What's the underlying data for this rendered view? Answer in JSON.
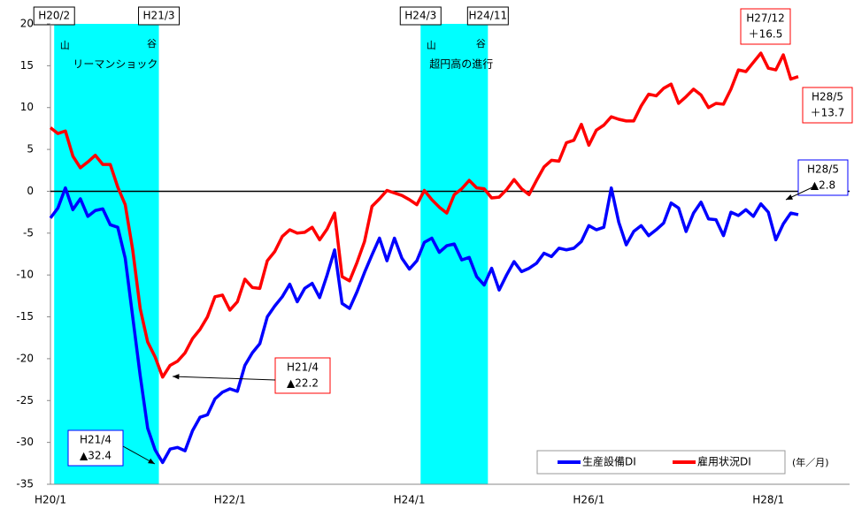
{
  "chart_data": {
    "type": "line",
    "categories": [
      "H20/1",
      null,
      null,
      null,
      null,
      null,
      null,
      null,
      null,
      null,
      null,
      null,
      null,
      null,
      null,
      null,
      null,
      null,
      null,
      null,
      null,
      null,
      null,
      null,
      "H22/1",
      null,
      null,
      null,
      null,
      null,
      null,
      null,
      null,
      null,
      null,
      null,
      null,
      null,
      null,
      null,
      null,
      null,
      null,
      null,
      null,
      null,
      null,
      null,
      "H24/1",
      null,
      null,
      null,
      null,
      null,
      null,
      null,
      null,
      null,
      null,
      null,
      null,
      null,
      null,
      null,
      null,
      null,
      null,
      null,
      null,
      null,
      null,
      null,
      "H26/1",
      null,
      null,
      null,
      null,
      null,
      null,
      null,
      null,
      null,
      null,
      null,
      null,
      null,
      null,
      null,
      null,
      null,
      null,
      null,
      null,
      null,
      null,
      null,
      "H28/1",
      null,
      null,
      null,
      null
    ],
    "series": [
      {
        "name": "生産設備DI",
        "color": "#0000ff",
        "values": [
          -3.2,
          -2,
          0.4,
          -2.2,
          -0.9,
          -3,
          -2.3,
          -2.1,
          -4,
          -4.3,
          -8,
          -15,
          -22,
          -28.3,
          -30.9,
          -32.4,
          -30.8,
          -30.6,
          -31,
          -28.6,
          -27,
          -26.7,
          -24.8,
          -24,
          -23.6,
          -23.9,
          -20.8,
          -19.3,
          -18.2,
          -15,
          -13.7,
          -12.6,
          -11.1,
          -13.2,
          -11.6,
          -11,
          -12.7,
          -10,
          -7,
          -13.4,
          -14,
          -12,
          -9.7,
          -7.6,
          -5.6,
          -8.3,
          -5.6,
          -8,
          -9.3,
          -8.3,
          -6.1,
          -5.6,
          -7.3,
          -6.5,
          -6.3,
          -8.2,
          -7.9,
          -10.2,
          -11.2,
          -9.2,
          -11.8,
          -10,
          -8.4,
          -9.6,
          -9.2,
          -8.6,
          -7.4,
          -7.8,
          -6.8,
          -7,
          -6.8,
          -6,
          -4.1,
          -4.6,
          -4.3,
          0.4,
          -3.7,
          -6.4,
          -4.8,
          -4.1,
          -5.3,
          -4.6,
          -3.8,
          -1.4,
          -2,
          -4.8,
          -2.6,
          -1.3,
          -3.3,
          -3.4,
          -5.3,
          -2.5,
          -2.9,
          -2.2,
          -3,
          -1.5,
          -2.5,
          -5.8,
          -3.9,
          -2.6,
          -2.8
        ]
      },
      {
        "name": "雇用状況DI",
        "color": "#ff0000",
        "values": [
          7.6,
          6.9,
          7.2,
          4.2,
          2.8,
          3.5,
          4.3,
          3.2,
          3.2,
          0.5,
          -1.6,
          -7,
          -14,
          -18,
          -19.8,
          -22.2,
          -20.8,
          -20.3,
          -19.3,
          -17.6,
          -16.5,
          -15,
          -12.6,
          -12.4,
          -14.2,
          -13.2,
          -10.5,
          -11.5,
          -11.6,
          -8.3,
          -7.2,
          -5.4,
          -4.6,
          -5,
          -4.9,
          -4.3,
          -5.8,
          -4.5,
          -2.6,
          -10.2,
          -10.7,
          -8.5,
          -6,
          -1.8,
          -0.9,
          0.1,
          -0.2,
          -0.5,
          -1,
          -1.6,
          0.1,
          -1,
          -1.9,
          -2.6,
          -0.4,
          0.3,
          1.3,
          0.4,
          0.3,
          -0.8,
          -0.7,
          0.2,
          1.4,
          0.3,
          -0.4,
          1.3,
          2.9,
          3.7,
          3.6,
          5.8,
          6.1,
          8,
          5.5,
          7.3,
          7.9,
          8.9,
          8.6,
          8.4,
          8.4,
          10.2,
          11.6,
          11.4,
          12.3,
          12.8,
          10.5,
          11.3,
          12.2,
          11.5,
          10,
          10.5,
          10.4,
          12.2,
          14.5,
          14.3,
          15.4,
          16.5,
          14.7,
          14.5,
          16.3,
          13.4,
          13.7
        ]
      }
    ],
    "ylim": [
      -35,
      20
    ],
    "yticks": [
      -35,
      -30,
      -25,
      -20,
      -15,
      -10,
      -5,
      0,
      5,
      10,
      15,
      20
    ],
    "zero_line": true,
    "legend": "lower right",
    "x_unit": "(年／月)",
    "shaded_periods": [
      {
        "start": 1,
        "end": 14,
        "start_label": "H20/2",
        "end_label": "H21/3",
        "peak": "山",
        "trough": "谷",
        "label": "リーマンショック"
      },
      {
        "start": 50,
        "end": 58,
        "start_label": "H24/3",
        "end_label": "H24/11",
        "peak": "山",
        "trough": "谷",
        "label": "超円高の進行"
      }
    ],
    "shade_color": "#00ffff",
    "annotations": [
      {
        "lines": [
          "H27/12",
          "＋16.5"
        ],
        "color": "#ff0000"
      },
      {
        "lines": [
          "H28/5",
          "＋13.7"
        ],
        "color": "#ff0000"
      },
      {
        "lines": [
          "H28/5",
          "▲2.8"
        ],
        "color": "#0000ff"
      },
      {
        "lines": [
          "H21/4",
          "▲22.2"
        ],
        "color": "#ff0000"
      },
      {
        "lines": [
          "H21/4",
          "▲32.4"
        ],
        "color": "#0000ff"
      }
    ]
  }
}
